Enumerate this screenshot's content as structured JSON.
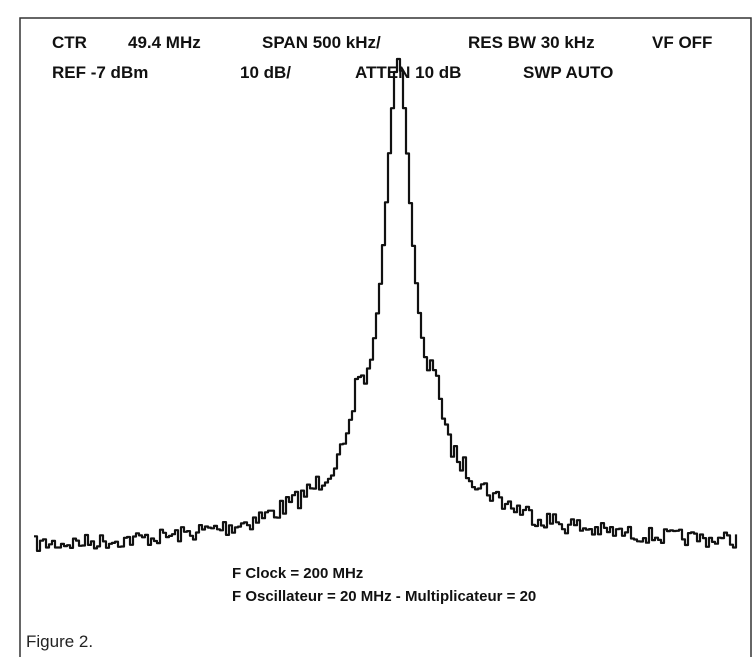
{
  "header": {
    "row1": [
      "CTR",
      "49.4 MHz",
      "SPAN 500 kHz/",
      "RES BW 30 kHz",
      "VF OFF"
    ],
    "row2": [
      "REF -7 dBm",
      "10 dB/",
      "ATTEN 10 dB",
      "SWP AUTO"
    ]
  },
  "notes": [
    "F Clock = 200 MHz",
    "F Oscillateur = 20 MHz - Multiplicateur = 20"
  ],
  "caption": "Figure 2."
}
